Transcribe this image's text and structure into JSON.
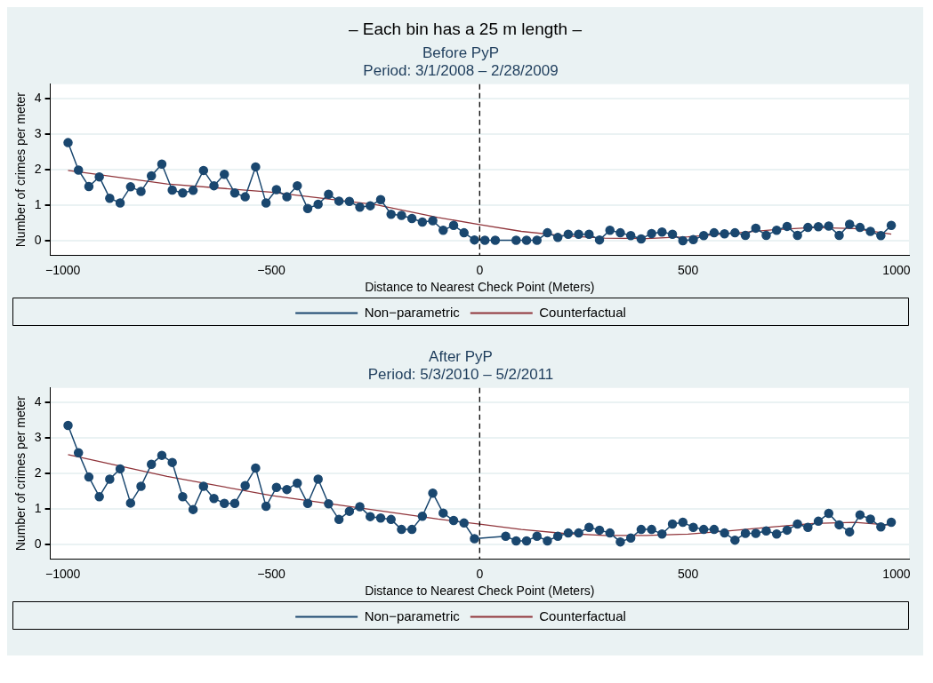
{
  "chart_data": [
    {
      "type": "line",
      "annotations": [
        "– Each bin has a 25 m length –"
      ],
      "title": "Before PyP",
      "subtitle": "Period: 3/1/2008 – 2/28/2009",
      "xlabel": "Distance to Nearest Check Point (Meters)",
      "ylabel": "Number of crimes per meter",
      "xlim": [
        -1030,
        1030
      ],
      "ylim": [
        -0.4,
        4.4
      ],
      "xticks": [
        -1000,
        -500,
        0,
        500,
        1000
      ],
      "yticks": [
        0,
        1,
        2,
        3,
        4
      ],
      "grid": "y",
      "legend": "bottom",
      "ref_lines": [
        {
          "axis": "x",
          "value": 0,
          "color": "#000000",
          "line_style": "dashed"
        }
      ],
      "series": [
        {
          "name": "Non−parametric",
          "marker": "circle",
          "color": "#1a476f",
          "x": [
            -987.5,
            -962.5,
            -937.5,
            -912.5,
            -887.5,
            -862.5,
            -837.5,
            -812.5,
            -787.5,
            -762.5,
            -737.5,
            -712.5,
            -687.5,
            -662.5,
            -637.5,
            -612.5,
            -587.5,
            -562.5,
            -537.5,
            -512.5,
            -487.5,
            -462.5,
            -437.5,
            -412.5,
            -387.5,
            -362.5,
            -337.5,
            -312.5,
            -287.5,
            -262.5,
            -237.5,
            -212.5,
            -187.5,
            -162.5,
            -137.5,
            -112.5,
            -87.5,
            -62.5,
            -37.5,
            -12.5,
            12.5,
            37.5,
            87.5,
            112.5,
            137.5,
            162.5,
            187.5,
            212.5,
            237.5,
            262.5,
            287.5,
            312.5,
            337.5,
            362.5,
            387.5,
            412.5,
            437.5,
            462.5,
            487.5,
            512.5,
            537.5,
            562.5,
            587.5,
            612.5,
            637.5,
            662.5,
            687.5,
            712.5,
            737.5,
            762.5,
            787.5,
            812.5,
            837.5,
            862.5,
            887.5,
            912.5,
            937.5,
            962.5,
            987.5
          ],
          "values": [
            2.76,
            1.99,
            1.53,
            1.8,
            1.2,
            1.07,
            1.52,
            1.39,
            1.83,
            2.16,
            1.43,
            1.35,
            1.42,
            1.98,
            1.55,
            1.87,
            1.35,
            1.24,
            2.08,
            1.07,
            1.44,
            1.24,
            1.55,
            0.91,
            1.03,
            1.31,
            1.12,
            1.11,
            0.95,
            0.99,
            1.16,
            0.75,
            0.72,
            0.63,
            0.53,
            0.57,
            0.3,
            0.44,
            0.23,
            0.03,
            0.02,
            0.02,
            0.02,
            0.02,
            0.02,
            0.23,
            0.1,
            0.19,
            0.19,
            0.19,
            0.03,
            0.3,
            0.23,
            0.15,
            0.06,
            0.21,
            0.25,
            0.19,
            0.01,
            0.04,
            0.15,
            0.23,
            0.2,
            0.23,
            0.16,
            0.36,
            0.16,
            0.3,
            0.41,
            0.16,
            0.38,
            0.4,
            0.42,
            0.16,
            0.47,
            0.38,
            0.27,
            0.15,
            0.44
          ]
        },
        {
          "name": "Counterfactual",
          "marker": "none",
          "color": "#90353b",
          "x": [
            -987.5,
            -750,
            -500,
            -250,
            -100,
            0,
            100,
            200,
            300,
            400,
            500,
            600,
            700,
            800,
            900,
            987.5
          ],
          "values": [
            1.98,
            1.6,
            1.37,
            1.02,
            0.66,
            0.46,
            0.27,
            0.15,
            0.08,
            0.07,
            0.12,
            0.21,
            0.31,
            0.38,
            0.35,
            0.19
          ]
        }
      ]
    },
    {
      "type": "line",
      "title": "After PyP",
      "subtitle": "Period: 5/3/2010 – 5/2/2011",
      "xlabel": "Distance to Nearest Check Point (Meters)",
      "ylabel": "Number of crimes per meter",
      "xlim": [
        -1030,
        1030
      ],
      "ylim": [
        -0.4,
        4.4
      ],
      "xticks": [
        -1000,
        -500,
        0,
        500,
        1000
      ],
      "yticks": [
        0,
        1,
        2,
        3,
        4
      ],
      "grid": "y",
      "legend": "bottom",
      "ref_lines": [
        {
          "axis": "x",
          "value": 0,
          "color": "#000000",
          "line_style": "dashed"
        }
      ],
      "series": [
        {
          "name": "Non−parametric",
          "marker": "circle",
          "color": "#1a476f",
          "x": [
            -987.5,
            -962.5,
            -937.5,
            -912.5,
            -887.5,
            -862.5,
            -837.5,
            -812.5,
            -787.5,
            -762.5,
            -737.5,
            -712.5,
            -687.5,
            -662.5,
            -637.5,
            -612.5,
            -587.5,
            -562.5,
            -537.5,
            -512.5,
            -487.5,
            -462.5,
            -437.5,
            -412.5,
            -387.5,
            -362.5,
            -337.5,
            -312.5,
            -287.5,
            -262.5,
            -237.5,
            -212.5,
            -187.5,
            -162.5,
            -137.5,
            -112.5,
            -87.5,
            -62.5,
            -37.5,
            -12.5,
            62.5,
            87.5,
            112.5,
            137.5,
            162.5,
            187.5,
            212.5,
            237.5,
            262.5,
            287.5,
            312.5,
            337.5,
            362.5,
            387.5,
            412.5,
            437.5,
            462.5,
            487.5,
            512.5,
            537.5,
            562.5,
            587.5,
            612.5,
            637.5,
            662.5,
            687.5,
            712.5,
            737.5,
            762.5,
            787.5,
            812.5,
            837.5,
            862.5,
            887.5,
            912.5,
            937.5,
            962.5,
            987.5
          ],
          "values": [
            3.35,
            2.58,
            1.9,
            1.35,
            1.84,
            2.13,
            1.17,
            1.64,
            2.26,
            2.51,
            2.31,
            1.35,
            0.99,
            1.64,
            1.3,
            1.16,
            1.16,
            1.66,
            2.15,
            1.08,
            1.61,
            1.55,
            1.73,
            1.16,
            1.84,
            1.15,
            0.71,
            0.94,
            1.07,
            0.79,
            0.75,
            0.71,
            0.43,
            0.43,
            0.8,
            1.45,
            0.89,
            0.68,
            0.61,
            0.17,
            0.24,
            0.11,
            0.11,
            0.24,
            0.11,
            0.24,
            0.33,
            0.33,
            0.49,
            0.41,
            0.33,
            0.08,
            0.19,
            0.43,
            0.43,
            0.3,
            0.58,
            0.63,
            0.49,
            0.43,
            0.43,
            0.33,
            0.13,
            0.32,
            0.32,
            0.39,
            0.3,
            0.41,
            0.58,
            0.49,
            0.66,
            0.88,
            0.56,
            0.36,
            0.84,
            0.72,
            0.5,
            0.63
          ]
        },
        {
          "name": "Counterfactual",
          "marker": "none",
          "color": "#90353b",
          "x": [
            -987.5,
            -750,
            -500,
            -250,
            -100,
            0,
            100,
            200,
            300,
            400,
            500,
            600,
            700,
            800,
            900,
            987.5
          ],
          "values": [
            2.53,
            1.92,
            1.38,
            0.97,
            0.72,
            0.58,
            0.43,
            0.32,
            0.26,
            0.26,
            0.3,
            0.39,
            0.5,
            0.6,
            0.63,
            0.55
          ]
        }
      ]
    }
  ]
}
